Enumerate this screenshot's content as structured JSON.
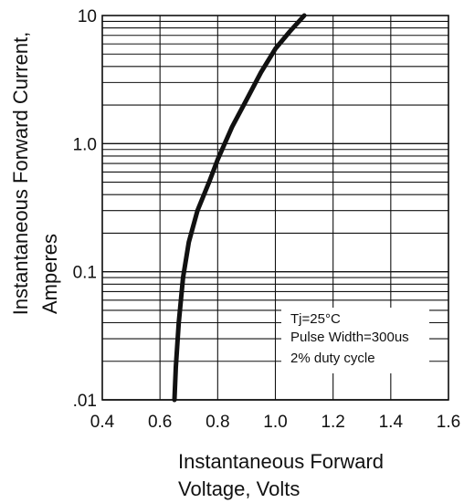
{
  "chart_data": {
    "type": "line",
    "title": "",
    "xlabel_lines": [
      "Instantaneous Forward",
      "Voltage, Volts"
    ],
    "ylabel_lines": [
      "Instantaneous Forward Current,",
      "Amperes"
    ],
    "xlim": [
      0.4,
      1.6
    ],
    "ylim": [
      0.01,
      10
    ],
    "y_scale": "log",
    "x_ticks": [
      "0.4",
      "0.6",
      "0.8",
      "1.0",
      "1.2",
      "1.4",
      "1.6"
    ],
    "y_ticks": [
      ".01",
      "0.1",
      "1.0",
      "10"
    ],
    "grid": true,
    "series": [
      {
        "x": [
          0.65,
          0.655,
          0.665,
          0.68,
          0.7,
          0.73,
          0.77,
          0.8,
          0.85,
          0.9,
          0.95,
          1.0,
          1.05,
          1.1
        ],
        "y": [
          0.01,
          0.018,
          0.04,
          0.09,
          0.17,
          0.3,
          0.5,
          0.75,
          1.35,
          2.2,
          3.6,
          5.5,
          7.5,
          10
        ]
      }
    ],
    "annotations": [
      "Tj=25°C",
      "Pulse Width=300us",
      "2% duty cycle"
    ]
  }
}
